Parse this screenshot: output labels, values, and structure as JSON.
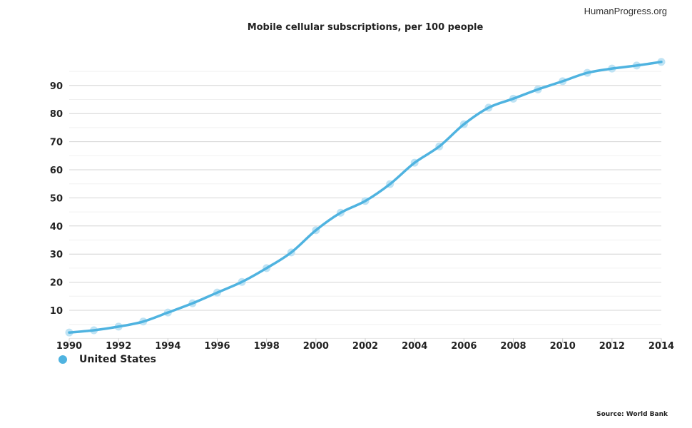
{
  "brand": "HumanProgress.org",
  "source": "Source: World Bank",
  "chart_data": {
    "type": "line",
    "title": "Mobile cellular subscriptions, per 100 people",
    "xlabel": "",
    "ylabel": "",
    "x": [
      1990,
      1991,
      1992,
      1993,
      1994,
      1995,
      1996,
      1997,
      1998,
      1999,
      2000,
      2001,
      2002,
      2003,
      2004,
      2005,
      2006,
      2007,
      2008,
      2009,
      2010,
      2011,
      2012,
      2013,
      2014
    ],
    "series": [
      {
        "name": "United States",
        "color": "#4fb3e0",
        "values": [
          2.1,
          2.9,
          4.2,
          6.0,
          9.2,
          12.5,
          16.3,
          20.1,
          25.0,
          30.6,
          38.5,
          44.7,
          48.9,
          54.9,
          62.5,
          68.3,
          76.2,
          82.1,
          85.3,
          88.6,
          91.5,
          94.5,
          96.0,
          97.1,
          98.4
        ]
      }
    ],
    "xlim": [
      1990,
      2014
    ],
    "ylim": [
      0,
      100
    ],
    "xticks": [
      1990,
      1992,
      1994,
      1996,
      1998,
      2000,
      2002,
      2004,
      2006,
      2008,
      2010,
      2012,
      2014
    ],
    "yticks": [
      10,
      20,
      30,
      40,
      50,
      60,
      70,
      80,
      90
    ],
    "grid": true,
    "legend": "bottom-left"
  }
}
